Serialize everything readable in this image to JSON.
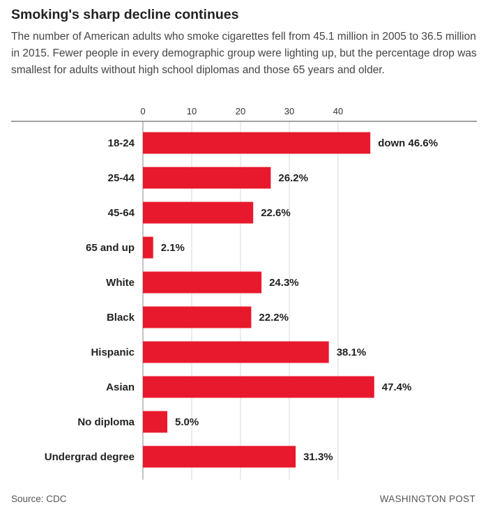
{
  "header": {
    "title": "Smoking's sharp decline continues",
    "subtitle": "The number of American adults who smoke cigarettes fell from 45.1 million in 2005 to 36.5 million in 2015. Fewer people in every demographic group were lighting up, but the percentage drop was smallest for adults without high school diplomas and those 65 years and older."
  },
  "footer": {
    "source": "Source: CDC",
    "credit": "WASHINGTON POST"
  },
  "colors": {
    "bar": "#e8192c",
    "grid": "#d9d9d9",
    "axis": "#444444"
  },
  "chart_data": {
    "type": "bar",
    "orientation": "horizontal",
    "title": "Smoking's sharp decline continues",
    "xlabel": "",
    "ylabel": "",
    "xlim": [
      0,
      50
    ],
    "ticks": [
      0,
      10,
      20,
      30,
      40
    ],
    "grid": true,
    "categories": [
      "18-24",
      "25-44",
      "45-64",
      "65 and up",
      "White",
      "Black",
      "Hispanic",
      "Asian",
      "No diploma",
      "Undergrad degree"
    ],
    "values": [
      46.6,
      26.2,
      22.6,
      2.1,
      24.3,
      22.2,
      38.1,
      47.4,
      5.0,
      31.3
    ],
    "labels": [
      "down 46.6%",
      "26.2%",
      "22.6%",
      "2.1%",
      "24.3%",
      "22.2%",
      "38.1%",
      "47.4%",
      "5.0%",
      "31.3%"
    ]
  }
}
